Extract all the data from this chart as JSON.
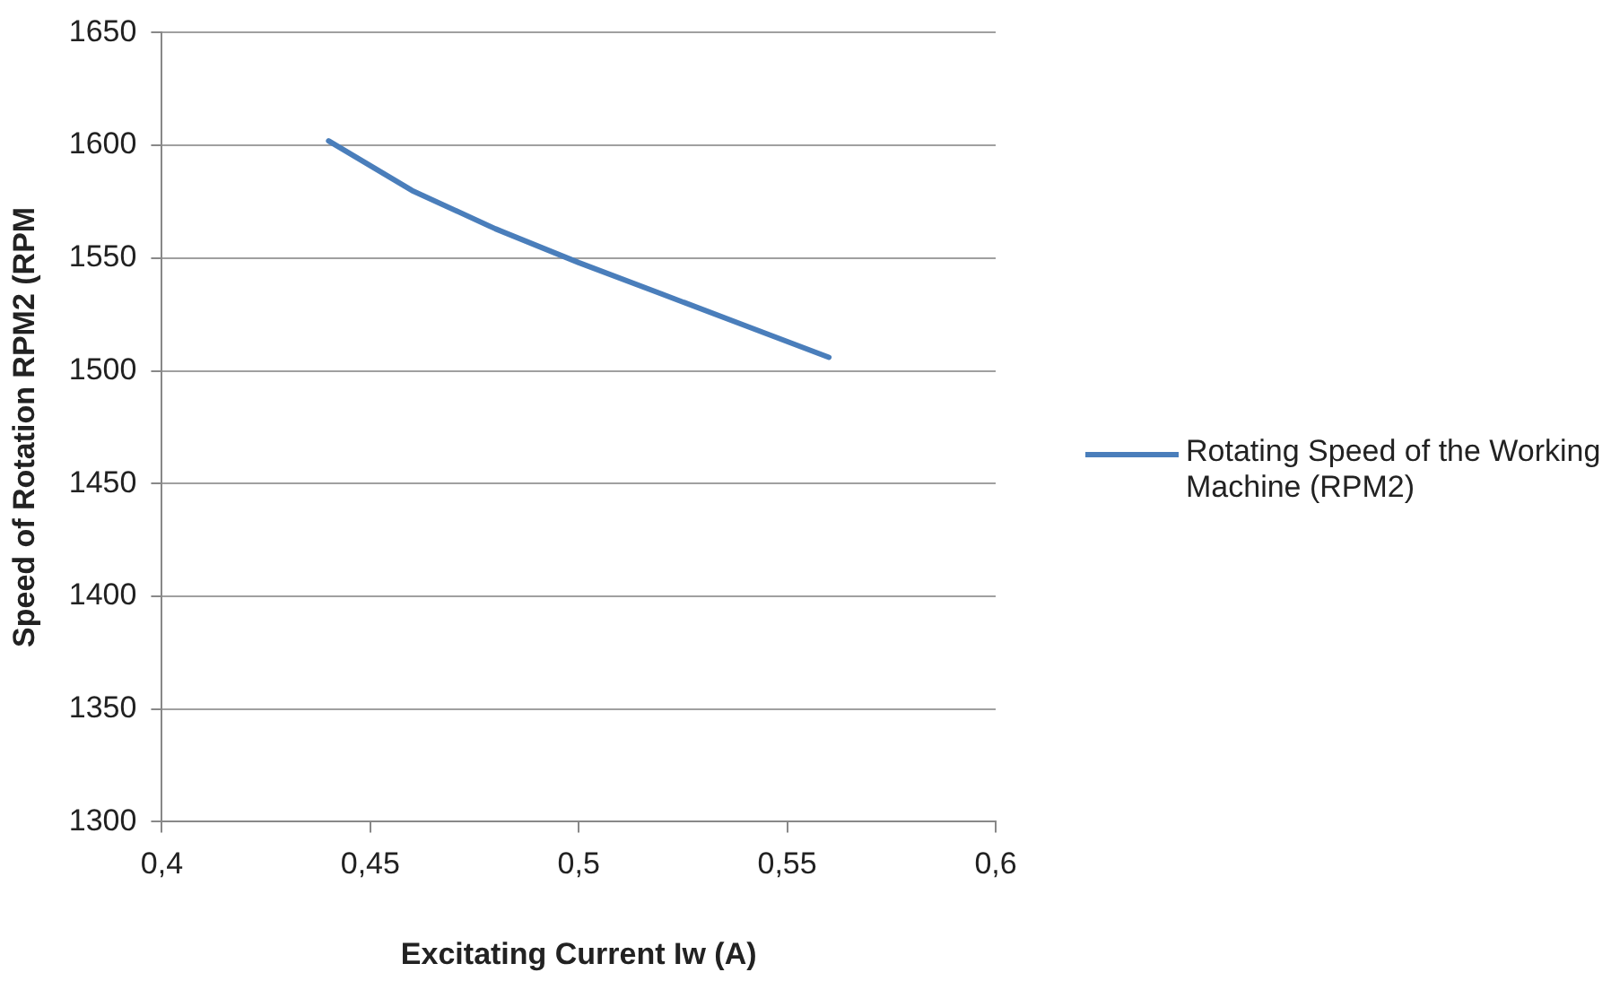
{
  "chart_data": {
    "type": "line",
    "xlabel": "Excitating Current Iw (A)",
    "ylabel": "Speed of Rotation RPM2 (RPM",
    "series": [
      {
        "name": "Rotating Speed of the Working Machine (RPM2)",
        "color": "#4a7ebb",
        "x": [
          0.44,
          0.46,
          0.48,
          0.5,
          0.52,
          0.54,
          0.56
        ],
        "values": [
          1602,
          1580,
          1563,
          1548,
          1534,
          1520,
          1506
        ]
      }
    ],
    "xlim": [
      0.4,
      0.6
    ],
    "xticks": [
      {
        "value": 0.4,
        "label": "0,4"
      },
      {
        "value": 0.45,
        "label": "0,45"
      },
      {
        "value": 0.5,
        "label": "0,5"
      },
      {
        "value": 0.55,
        "label": "0,55"
      },
      {
        "value": 0.6,
        "label": "0,6"
      }
    ],
    "ylim": [
      1300,
      1650
    ],
    "yticks": [
      1300,
      1350,
      1400,
      1450,
      1500,
      1550,
      1600,
      1650
    ],
    "grid": "y",
    "legend": "right",
    "marker": "none",
    "line_style": "solid"
  }
}
